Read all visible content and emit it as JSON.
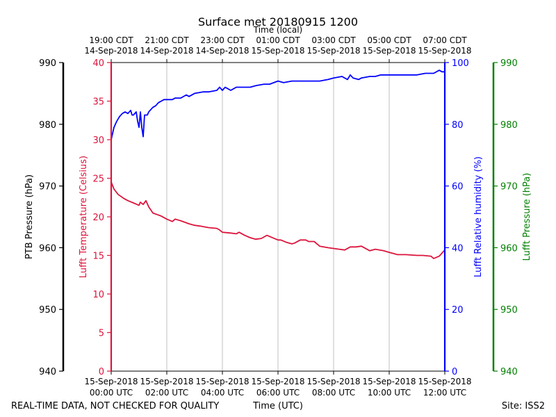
{
  "chart_data": {
    "type": "line",
    "title": "Surface met 20180915 1200",
    "top_axis_label": "Time (local)",
    "xlabel": "Time (UTC)",
    "x_unit": "hours since 15-Sep-2018 00:00 UTC",
    "xlim": [
      0,
      12
    ],
    "x_ticks_utc": [
      {
        "x": 0,
        "line1": "15-Sep-2018",
        "line2": "00:00 UTC"
      },
      {
        "x": 2,
        "line1": "15-Sep-2018",
        "line2": "02:00 UTC"
      },
      {
        "x": 4,
        "line1": "15-Sep-2018",
        "line2": "04:00 UTC"
      },
      {
        "x": 6,
        "line1": "15-Sep-2018",
        "line2": "06:00 UTC"
      },
      {
        "x": 8,
        "line1": "15-Sep-2018",
        "line2": "08:00 UTC"
      },
      {
        "x": 10,
        "line1": "15-Sep-2018",
        "line2": "10:00 UTC"
      },
      {
        "x": 12,
        "line1": "15-Sep-2018",
        "line2": "12:00 UTC"
      }
    ],
    "x_ticks_local": [
      {
        "x": 0,
        "line1": "19:00 CDT",
        "line2": "14-Sep-2018"
      },
      {
        "x": 2,
        "line1": "21:00 CDT",
        "line2": "14-Sep-2018"
      },
      {
        "x": 4,
        "line1": "23:00 CDT",
        "line2": "14-Sep-2018"
      },
      {
        "x": 6,
        "line1": "01:00 CDT",
        "line2": "15-Sep-2018"
      },
      {
        "x": 8,
        "line1": "03:00 CDT",
        "line2": "15-Sep-2018"
      },
      {
        "x": 10,
        "line1": "05:00 CDT",
        "line2": "15-Sep-2018"
      },
      {
        "x": 12,
        "line1": "07:00 CDT",
        "line2": "15-Sep-2018"
      }
    ],
    "grid": "vertical",
    "axes": {
      "ptb_pressure": {
        "label": "PTB Pressure (hPa)",
        "color": "#000000",
        "ylim": [
          940,
          990
        ],
        "ticks": [
          940,
          950,
          960,
          970,
          980,
          990
        ]
      },
      "temperature": {
        "label": "Lufft Temperature (Celsius)",
        "color": "#dc143c",
        "ylim": [
          0,
          40
        ],
        "ticks": [
          0,
          5,
          10,
          15,
          20,
          25,
          30,
          35,
          40
        ]
      },
      "humidity": {
        "label": "Lufft Relative humidity (%)",
        "color": "#0000ff",
        "ylim": [
          0,
          100
        ],
        "ticks": [
          0,
          20,
          40,
          60,
          80,
          100
        ]
      },
      "lufft_pressure": {
        "label": "Lufft Pressure (hPa)",
        "color": "#008000",
        "ylim": [
          940,
          990
        ],
        "ticks": [
          940,
          950,
          960,
          970,
          980,
          990
        ]
      }
    },
    "series": [
      {
        "name": "Lufft Temperature (Celsius)",
        "axis": "temperature",
        "color": "#dc143c",
        "x": [
          0.0,
          0.1,
          0.25,
          0.45,
          0.6,
          0.8,
          1.0,
          1.05,
          1.15,
          1.25,
          1.35,
          1.5,
          1.65,
          1.8,
          2.0,
          2.2,
          2.3,
          2.5,
          2.8,
          3.0,
          3.2,
          3.5,
          3.8,
          3.9,
          4.0,
          4.3,
          4.5,
          4.6,
          4.8,
          5.0,
          5.2,
          5.4,
          5.6,
          6.0,
          6.1,
          6.3,
          6.5,
          6.6,
          6.8,
          7.0,
          7.1,
          7.3,
          7.5,
          7.8,
          8.0,
          8.2,
          8.4,
          8.6,
          8.8,
          9.0,
          9.3,
          9.5,
          9.8,
          10.0,
          10.3,
          10.6,
          11.0,
          11.2,
          11.5,
          11.6,
          11.8,
          12.0
        ],
        "y": [
          24.5,
          23.6,
          22.9,
          22.4,
          22.1,
          21.8,
          21.5,
          21.9,
          21.6,
          22.1,
          21.3,
          20.5,
          20.3,
          20.1,
          19.7,
          19.4,
          19.7,
          19.5,
          19.1,
          18.9,
          18.8,
          18.6,
          18.5,
          18.3,
          18.0,
          17.9,
          17.8,
          18.0,
          17.6,
          17.3,
          17.1,
          17.2,
          17.6,
          17.0,
          17.0,
          16.7,
          16.5,
          16.6,
          17.0,
          17.0,
          16.8,
          16.8,
          16.2,
          16.0,
          15.9,
          15.8,
          15.7,
          16.1,
          16.1,
          16.2,
          15.6,
          15.8,
          15.6,
          15.4,
          15.1,
          15.1,
          15.0,
          15.0,
          14.9,
          14.6,
          14.9,
          15.7
        ]
      },
      {
        "name": "Lufft Relative humidity (%)",
        "axis": "humidity",
        "color": "#0000ff",
        "x": [
          0.0,
          0.1,
          0.2,
          0.3,
          0.4,
          0.5,
          0.6,
          0.7,
          0.75,
          0.8,
          0.9,
          0.95,
          1.0,
          1.05,
          1.1,
          1.15,
          1.2,
          1.25,
          1.3,
          1.35,
          1.4,
          1.5,
          1.6,
          1.7,
          1.8,
          1.9,
          2.0,
          2.2,
          2.3,
          2.5,
          2.7,
          2.8,
          3.0,
          3.3,
          3.5,
          3.8,
          3.9,
          4.0,
          4.1,
          4.3,
          4.5,
          4.8,
          5.0,
          5.2,
          5.5,
          5.7,
          6.0,
          6.2,
          6.5,
          6.8,
          7.0,
          7.3,
          7.5,
          7.8,
          8.0,
          8.3,
          8.5,
          8.6,
          8.7,
          8.9,
          9.0,
          9.3,
          9.5,
          9.7,
          10.0,
          10.3,
          10.5,
          10.8,
          11.0,
          11.3,
          11.6,
          11.8,
          11.9,
          12.0
        ],
        "y": [
          75.0,
          79.0,
          81.0,
          82.5,
          83.5,
          84.0,
          83.5,
          84.5,
          83.0,
          83.0,
          84.0,
          81.0,
          79.0,
          84.0,
          79.0,
          76.0,
          83.0,
          83.0,
          83.0,
          84.0,
          84.5,
          85.5,
          86.0,
          87.0,
          87.5,
          88.0,
          88.0,
          88.0,
          88.5,
          88.5,
          89.5,
          89.0,
          90.0,
          90.5,
          90.5,
          91.0,
          92.0,
          91.0,
          92.0,
          91.0,
          92.0,
          92.0,
          92.0,
          92.5,
          93.0,
          93.0,
          94.0,
          93.5,
          94.0,
          94.0,
          94.0,
          94.0,
          94.0,
          94.5,
          95.0,
          95.5,
          94.5,
          96.0,
          95.0,
          94.5,
          95.0,
          95.5,
          95.5,
          96.0,
          96.0,
          96.0,
          96.0,
          96.0,
          96.0,
          96.5,
          96.5,
          97.5,
          97.0,
          97.0
        ]
      }
    ]
  },
  "footer": {
    "disclaimer": "REAL-TIME DATA, NOT CHECKED FOR QUALITY",
    "site": "Site: ISS2"
  }
}
